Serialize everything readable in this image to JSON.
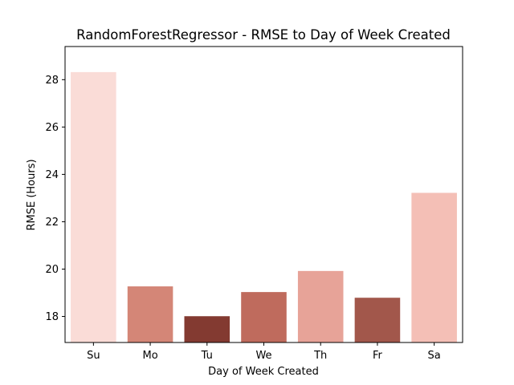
{
  "chart_data": {
    "type": "bar",
    "title": "RandomForestRegressor - RMSE to Day of Week Created",
    "xlabel": "Day of Week Created",
    "ylabel": "RMSE (Hours)",
    "categories": [
      "Su",
      "Mo",
      "Tu",
      "We",
      "Th",
      "Fr",
      "Sa"
    ],
    "values": [
      28.32,
      19.27,
      18.01,
      19.03,
      19.92,
      18.79,
      23.22
    ],
    "colors": [
      "#fadcd7",
      "#d48677",
      "#833a31",
      "#bf6b5d",
      "#e7a398",
      "#a2574b",
      "#f4bfb6"
    ],
    "ylim": [
      16.9,
      29.4
    ],
    "yticks": [
      18,
      20,
      22,
      24,
      26,
      28
    ],
    "grid": false,
    "legend": "none"
  }
}
